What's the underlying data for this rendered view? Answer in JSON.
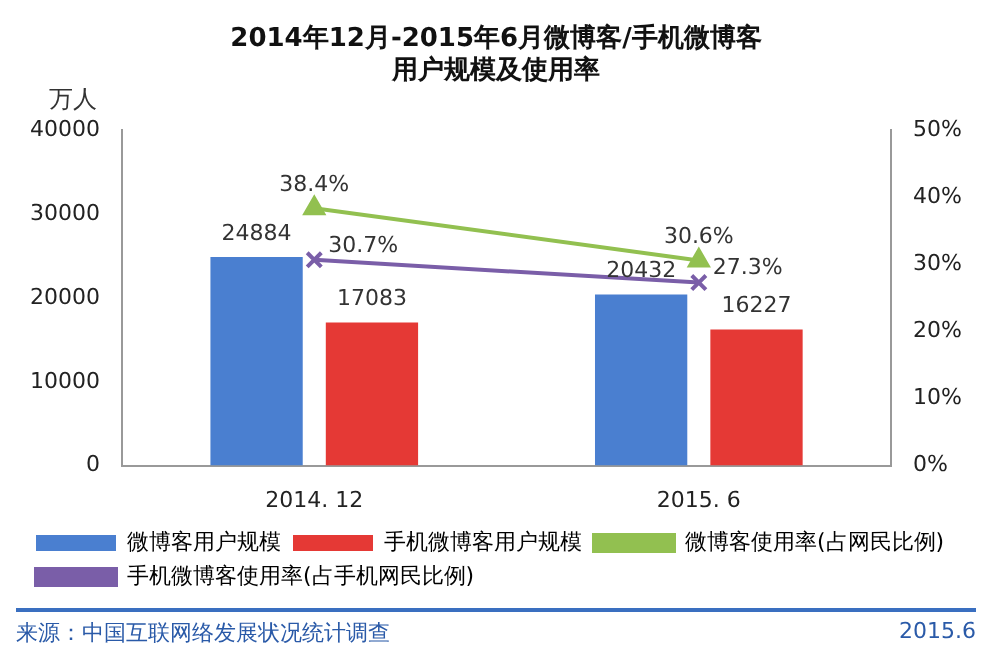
{
  "chart_data": {
    "type": "bar",
    "title": "2014年12月-2015年6月微博客/手机微博客",
    "subtitle": "用户规模及使用率",
    "ylabel": "万人",
    "categories": [
      "2014. 12",
      "2015. 6"
    ],
    "series": [
      {
        "name": "微博客用户规模",
        "color": "#4a7fd0",
        "values": [
          24884,
          20432
        ],
        "value_labels": [
          "24884",
          "20432"
        ]
      },
      {
        "name": "手机微博客用户规模",
        "color": "#e53935",
        "values": [
          17083,
          16227
        ],
        "value_labels": [
          "17083",
          "16227"
        ]
      },
      {
        "name": "微博客使用率(占网民比例)",
        "type": "line",
        "axis": "y2",
        "marker": "triangle",
        "color": "#92c050",
        "values": [
          38.4,
          30.6
        ],
        "value_labels": [
          "38.4%",
          "30.6%"
        ]
      },
      {
        "name": "手机微博客使用率(占手机网民比例)",
        "type": "line",
        "axis": "y2",
        "marker": "cross",
        "color": "#7a5ea8",
        "values": [
          30.7,
          27.3
        ],
        "value_labels": [
          "30.7%",
          "27.3%"
        ]
      }
    ],
    "ylim": [
      0,
      40000
    ],
    "yticks": [
      0,
      10000,
      20000,
      30000,
      40000
    ],
    "y2lim": [
      0,
      50
    ],
    "y2ticks": [
      {
        "value": 0,
        "label": "0%"
      },
      {
        "value": 10,
        "label": "10%"
      },
      {
        "value": 20,
        "label": "20%"
      },
      {
        "value": 30,
        "label": "30%"
      },
      {
        "value": 40,
        "label": "40%"
      },
      {
        "value": 50,
        "label": "50%"
      }
    ],
    "grid": false,
    "legend": "bottom",
    "annotations": [
      "来源：中国互联网络发展状况统计调查",
      "2015.6"
    ]
  }
}
